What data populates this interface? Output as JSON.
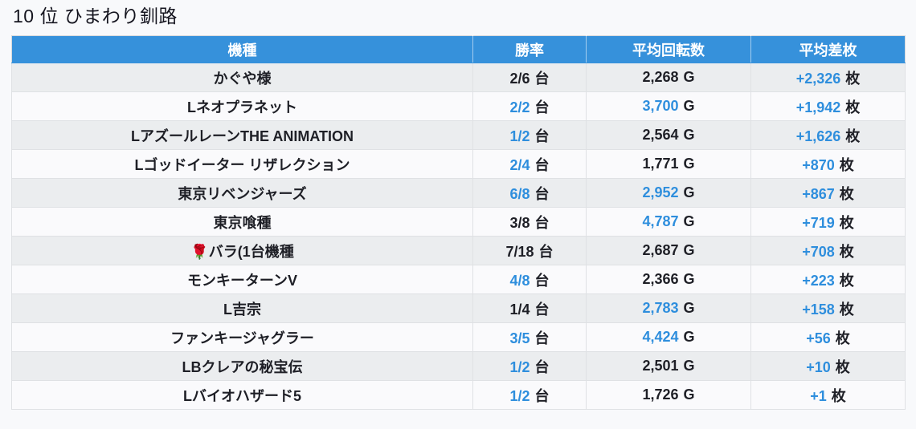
{
  "title": "10 位 ひまわり釧路",
  "colors": {
    "header_bg": "#3691db",
    "header_text": "#ffffff",
    "highlight": "#2e8edd",
    "text": "#1e1f26",
    "row_odd": "#ebedef",
    "row_even": "#fafafc",
    "page_bg": "#f8f9fb"
  },
  "table": {
    "columns": [
      "機種",
      "勝率",
      "平均回転数",
      "平均差枚"
    ],
    "rows": [
      {
        "name": "かぐや様",
        "win_rate": {
          "value": "2/6",
          "unit": "台",
          "highlight": false
        },
        "avg_spins": {
          "value": "2,268",
          "unit": "G",
          "highlight": false
        },
        "avg_diff": {
          "value": "+2,326",
          "unit": "枚",
          "highlight": true
        }
      },
      {
        "name": "Lネオプラネット",
        "win_rate": {
          "value": "2/2",
          "unit": "台",
          "highlight": true
        },
        "avg_spins": {
          "value": "3,700",
          "unit": "G",
          "highlight": true
        },
        "avg_diff": {
          "value": "+1,942",
          "unit": "枚",
          "highlight": true
        }
      },
      {
        "name": "LアズールレーンTHE ANIMATION",
        "win_rate": {
          "value": "1/2",
          "unit": "台",
          "highlight": true
        },
        "avg_spins": {
          "value": "2,564",
          "unit": "G",
          "highlight": false
        },
        "avg_diff": {
          "value": "+1,626",
          "unit": "枚",
          "highlight": true
        }
      },
      {
        "name": "Lゴッドイーター リザレクション",
        "win_rate": {
          "value": "2/4",
          "unit": "台",
          "highlight": true
        },
        "avg_spins": {
          "value": "1,771",
          "unit": "G",
          "highlight": false
        },
        "avg_diff": {
          "value": "+870",
          "unit": "枚",
          "highlight": true
        }
      },
      {
        "name": "東京リベンジャーズ",
        "win_rate": {
          "value": "6/8",
          "unit": "台",
          "highlight": true
        },
        "avg_spins": {
          "value": "2,952",
          "unit": "G",
          "highlight": true
        },
        "avg_diff": {
          "value": "+867",
          "unit": "枚",
          "highlight": true
        }
      },
      {
        "name": "東京喰種",
        "win_rate": {
          "value": "3/8",
          "unit": "台",
          "highlight": false
        },
        "avg_spins": {
          "value": "4,787",
          "unit": "G",
          "highlight": true
        },
        "avg_diff": {
          "value": "+719",
          "unit": "枚",
          "highlight": true
        }
      },
      {
        "name": "🌹バラ(1台機種",
        "win_rate": {
          "value": "7/18",
          "unit": "台",
          "highlight": false
        },
        "avg_spins": {
          "value": "2,687",
          "unit": "G",
          "highlight": false
        },
        "avg_diff": {
          "value": "+708",
          "unit": "枚",
          "highlight": true
        }
      },
      {
        "name": "モンキーターンV",
        "win_rate": {
          "value": "4/8",
          "unit": "台",
          "highlight": true
        },
        "avg_spins": {
          "value": "2,366",
          "unit": "G",
          "highlight": false
        },
        "avg_diff": {
          "value": "+223",
          "unit": "枚",
          "highlight": true
        }
      },
      {
        "name": "L吉宗",
        "win_rate": {
          "value": "1/4",
          "unit": "台",
          "highlight": false
        },
        "avg_spins": {
          "value": "2,783",
          "unit": "G",
          "highlight": true
        },
        "avg_diff": {
          "value": "+158",
          "unit": "枚",
          "highlight": true
        }
      },
      {
        "name": "ファンキージャグラー",
        "win_rate": {
          "value": "3/5",
          "unit": "台",
          "highlight": true
        },
        "avg_spins": {
          "value": "4,424",
          "unit": "G",
          "highlight": true
        },
        "avg_diff": {
          "value": "+56",
          "unit": "枚",
          "highlight": true
        }
      },
      {
        "name": "LBクレアの秘宝伝",
        "win_rate": {
          "value": "1/2",
          "unit": "台",
          "highlight": true
        },
        "avg_spins": {
          "value": "2,501",
          "unit": "G",
          "highlight": false
        },
        "avg_diff": {
          "value": "+10",
          "unit": "枚",
          "highlight": true
        }
      },
      {
        "name": "Lバイオハザード5",
        "win_rate": {
          "value": "1/2",
          "unit": "台",
          "highlight": true
        },
        "avg_spins": {
          "value": "1,726",
          "unit": "G",
          "highlight": false
        },
        "avg_diff": {
          "value": "+1",
          "unit": "枚",
          "highlight": true
        }
      }
    ]
  }
}
